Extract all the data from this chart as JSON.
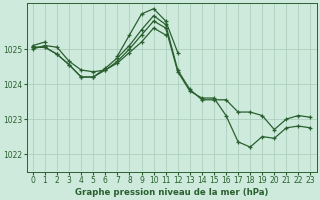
{
  "title": "Graphe pression niveau de la mer (hPa)",
  "background_color": "#ceeadc",
  "grid_color": "#a8cbb8",
  "line_color": "#2a6030",
  "xlim": [
    -0.5,
    23.5
  ],
  "ylim": [
    1021.5,
    1026.3
  ],
  "yticks": [
    1022,
    1023,
    1024,
    1025
  ],
  "xticks": [
    0,
    1,
    2,
    3,
    4,
    5,
    6,
    7,
    8,
    9,
    10,
    11,
    12,
    13,
    14,
    15,
    16,
    17,
    18,
    19,
    20,
    21,
    22,
    23
  ],
  "series": [
    [
      1025.1,
      1025.2,
      null,
      null,
      null,
      null,
      null,
      1024.8,
      1025.4,
      1026.0,
      1026.15,
      1025.8,
      1024.9,
      null,
      null,
      null,
      null,
      null,
      null,
      null,
      null,
      null,
      null,
      null
    ],
    [
      1025.0,
      1025.1,
      1025.05,
      1024.65,
      1024.4,
      1024.35,
      1024.4,
      1024.6,
      1024.9,
      1025.2,
      1025.6,
      1025.4,
      null,
      null,
      null,
      null,
      null,
      null,
      null,
      null,
      null,
      null,
      null,
      null
    ],
    [
      1025.05,
      1025.05,
      1024.85,
      1024.55,
      1024.2,
      1024.2,
      1024.45,
      1024.75,
      1025.1,
      1025.55,
      1025.95,
      1025.7,
      1024.4,
      1023.85,
      1023.55,
      1023.55,
      1023.55,
      1023.2,
      1023.2,
      1023.1,
      1022.7,
      1023.0,
      1023.1,
      1023.05
    ],
    [
      1025.05,
      1025.05,
      1024.85,
      1024.55,
      1024.2,
      1024.2,
      1024.4,
      1024.65,
      1025.0,
      1025.4,
      1025.8,
      1025.6,
      1024.35,
      1023.8,
      1023.6,
      1023.6,
      1023.1,
      1022.35,
      1022.2,
      1022.5,
      1022.45,
      1022.75,
      1022.8,
      1022.75
    ]
  ]
}
